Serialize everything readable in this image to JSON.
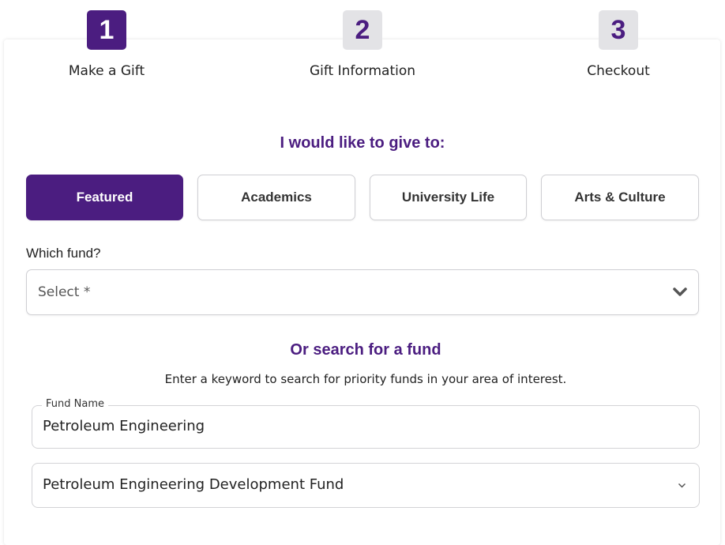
{
  "steps": [
    {
      "number": "1",
      "label": "Make a Gift",
      "active": true
    },
    {
      "number": "2",
      "label": "Gift Information",
      "active": false
    },
    {
      "number": "3",
      "label": "Checkout",
      "active": false
    }
  ],
  "give_heading": "I would like to give to:",
  "categories": [
    "Featured",
    "Academics",
    "University Life",
    "Arts & Culture"
  ],
  "selected_category": "Featured",
  "fund_select": {
    "label": "Which fund?",
    "placeholder": "Select *",
    "icon": "chevron-down-icon"
  },
  "search": {
    "heading": "Or search for a fund",
    "description": "Enter a keyword to search for priority funds in your area of interest.",
    "field_label": "Fund Name",
    "field_value": "Petroleum Engineering",
    "result_value": "Petroleum Engineering Development Fund"
  },
  "colors": {
    "accent": "#4b1d80",
    "inactive_step": "#e3e3e6"
  }
}
